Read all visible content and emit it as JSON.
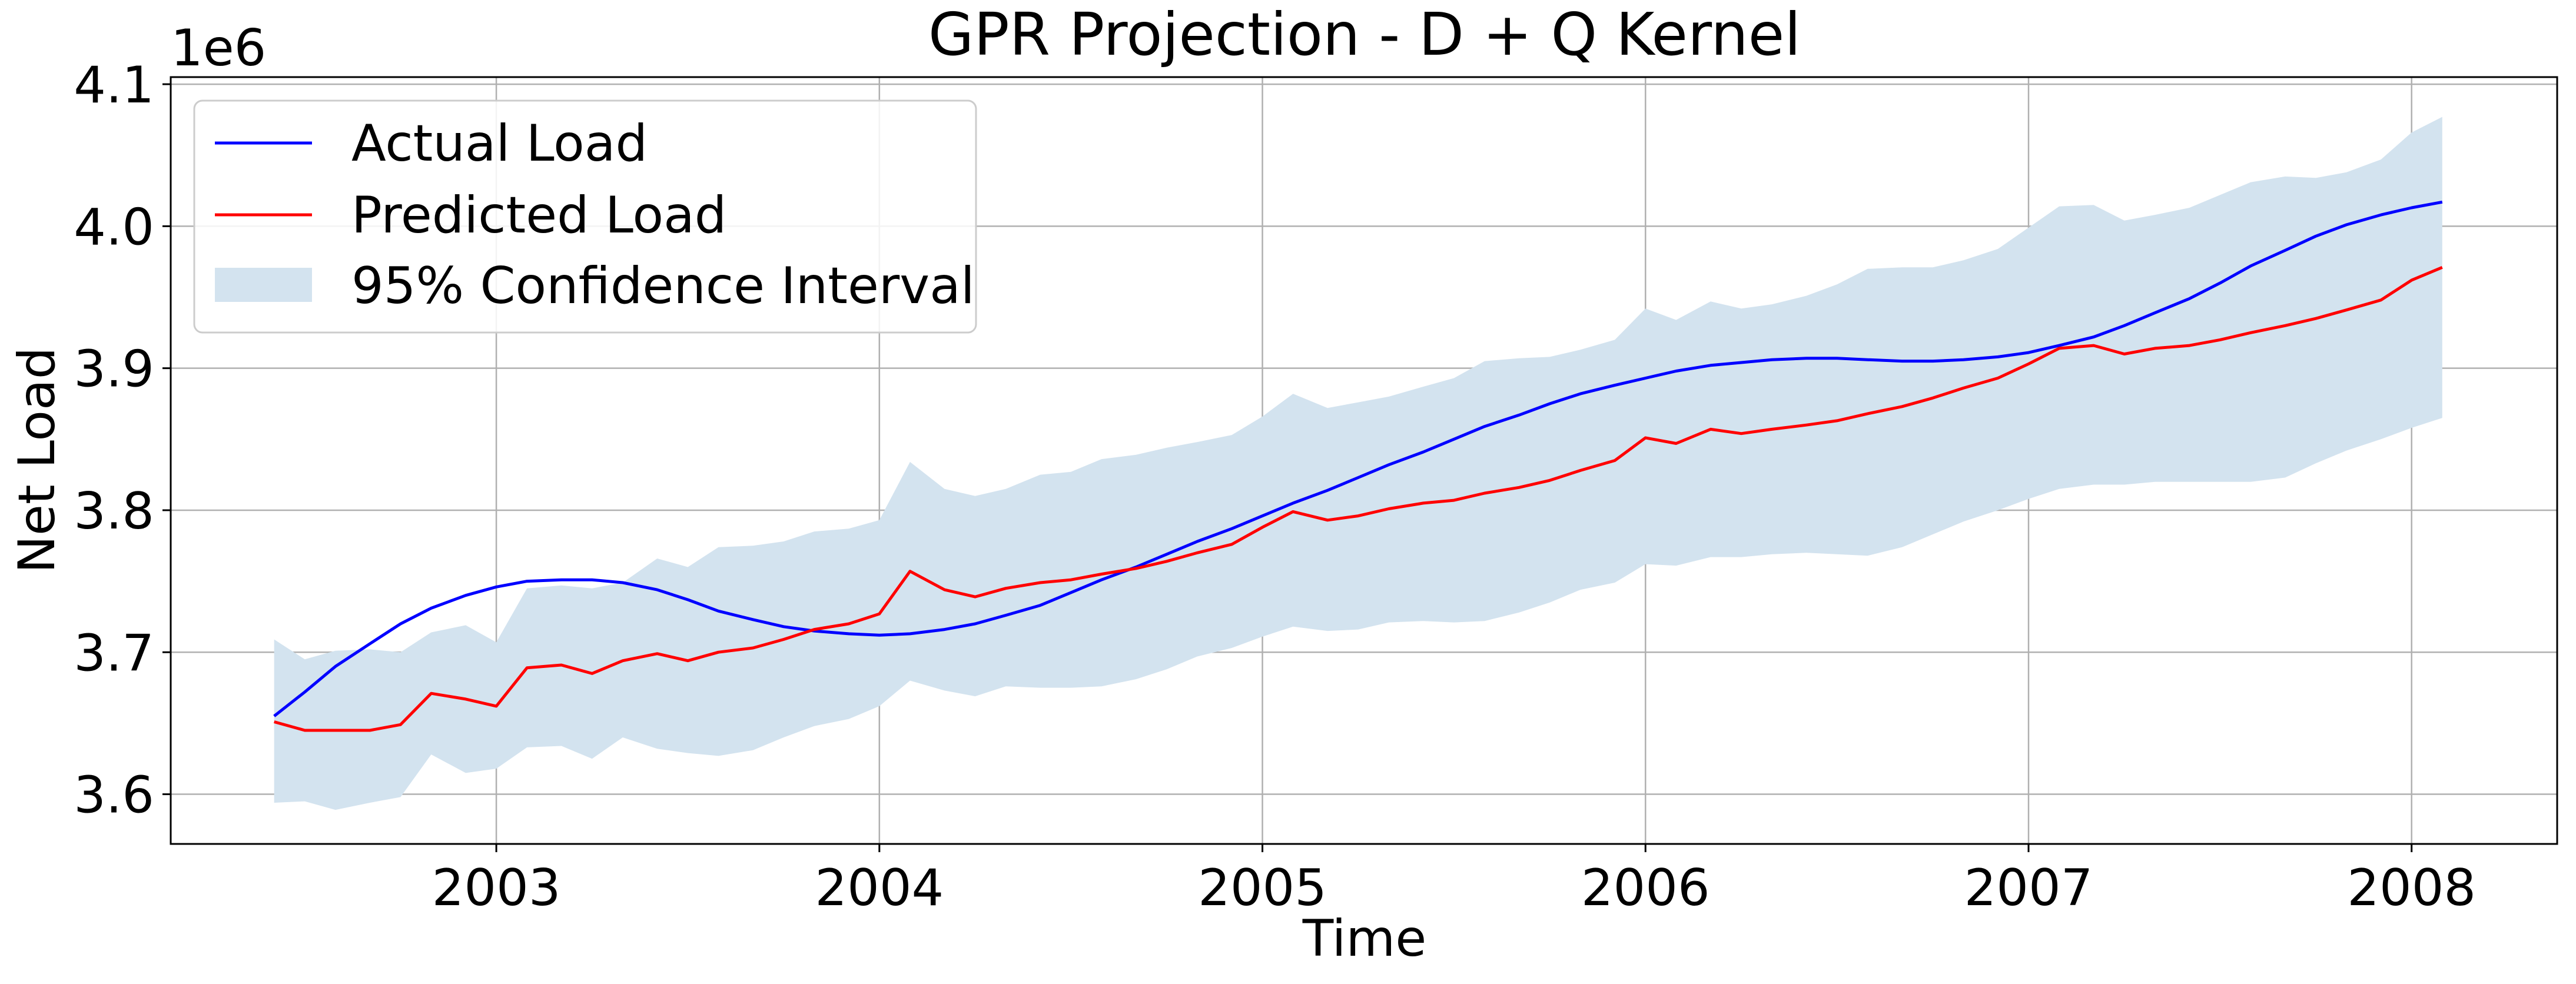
{
  "chart_data": {
    "type": "line",
    "title": "GPR Projection - D + Q Kernel",
    "xlabel": "Time",
    "ylabel": "Net Load",
    "y_offset_label": "1e6",
    "xlim": [
      2002.15,
      2008.38
    ],
    "ylim": [
      3.565,
      4.105
    ],
    "x_ticks": [
      2003,
      2004,
      2005,
      2006,
      2007,
      2008
    ],
    "x_tick_labels": [
      "2003",
      "2004",
      "2005",
      "2006",
      "2007",
      "2008"
    ],
    "y_ticks": [
      3.6,
      3.7,
      3.8,
      3.9,
      4.0,
      4.1
    ],
    "y_tick_labels": [
      "3.6",
      "3.7",
      "3.8",
      "3.9",
      "4.0",
      "4.1"
    ],
    "grid": true,
    "legend_position": "top-left",
    "colors": {
      "actual": "#0000ff",
      "predicted": "#ff0000",
      "ci": "#d3e3ef"
    },
    "x": [
      2002.42,
      2002.5,
      2002.58,
      2002.67,
      2002.75,
      2002.83,
      2002.92,
      2003.0,
      2003.08,
      2003.17,
      2003.25,
      2003.33,
      2003.42,
      2003.5,
      2003.58,
      2003.67,
      2003.75,
      2003.83,
      2003.92,
      2004.0,
      2004.08,
      2004.17,
      2004.25,
      2004.33,
      2004.42,
      2004.5,
      2004.58,
      2004.67,
      2004.75,
      2004.83,
      2004.92,
      2005.0,
      2005.08,
      2005.17,
      2005.25,
      2005.33,
      2005.42,
      2005.5,
      2005.58,
      2005.67,
      2005.75,
      2005.83,
      2005.92,
      2006.0,
      2006.08,
      2006.17,
      2006.25,
      2006.33,
      2006.42,
      2006.5,
      2006.58,
      2006.67,
      2006.75,
      2006.83,
      2006.92,
      2007.0,
      2007.08,
      2007.17,
      2007.25,
      2007.33,
      2007.42,
      2007.5,
      2007.58,
      2007.67,
      2007.75,
      2007.83,
      2007.92,
      2008.0,
      2008.08
    ],
    "series": [
      {
        "name": "Actual Load",
        "values": [
          3.655,
          3.672,
          3.69,
          3.706,
          3.72,
          3.731,
          3.74,
          3.746,
          3.75,
          3.751,
          3.751,
          3.749,
          3.744,
          3.737,
          3.729,
          3.723,
          3.718,
          3.715,
          3.713,
          3.712,
          3.713,
          3.716,
          3.72,
          3.726,
          3.733,
          3.742,
          3.751,
          3.76,
          3.769,
          3.778,
          3.787,
          3.796,
          3.805,
          3.814,
          3.823,
          3.832,
          3.841,
          3.85,
          3.859,
          3.867,
          3.875,
          3.882,
          3.888,
          3.893,
          3.898,
          3.902,
          3.904,
          3.906,
          3.907,
          3.907,
          3.906,
          3.905,
          3.905,
          3.906,
          3.908,
          3.911,
          3.916,
          3.922,
          3.93,
          3.939,
          3.949,
          3.96,
          3.972,
          3.983,
          3.993,
          4.001,
          4.008,
          4.013,
          4.017
        ]
      },
      {
        "name": "Predicted Load",
        "values": [
          3.651,
          3.645,
          3.645,
          3.645,
          3.649,
          3.671,
          3.667,
          3.662,
          3.689,
          3.691,
          3.685,
          3.694,
          3.699,
          3.694,
          3.7,
          3.703,
          3.709,
          3.716,
          3.72,
          3.727,
          3.757,
          3.744,
          3.739,
          3.745,
          3.749,
          3.751,
          3.755,
          3.759,
          3.764,
          3.77,
          3.776,
          3.788,
          3.799,
          3.793,
          3.796,
          3.801,
          3.805,
          3.807,
          3.812,
          3.816,
          3.821,
          3.828,
          3.835,
          3.851,
          3.847,
          3.857,
          3.854,
          3.857,
          3.86,
          3.863,
          3.868,
          3.873,
          3.879,
          3.886,
          3.893,
          3.903,
          3.914,
          3.916,
          3.91,
          3.914,
          3.916,
          3.92,
          3.925,
          3.93,
          3.935,
          3.941,
          3.948,
          3.962,
          3.971
        ]
      }
    ],
    "confidence_interval": {
      "name": "95% Confidence Interval",
      "lower": [
        3.594,
        3.595,
        3.589,
        3.594,
        3.598,
        3.628,
        3.615,
        3.618,
        3.633,
        3.634,
        3.625,
        3.64,
        3.632,
        3.629,
        3.627,
        3.631,
        3.64,
        3.648,
        3.653,
        3.662,
        3.68,
        3.673,
        3.669,
        3.676,
        3.675,
        3.675,
        3.676,
        3.681,
        3.688,
        3.697,
        3.703,
        3.711,
        3.718,
        3.715,
        3.716,
        3.721,
        3.722,
        3.721,
        3.722,
        3.728,
        3.735,
        3.744,
        3.749,
        3.762,
        3.761,
        3.767,
        3.767,
        3.769,
        3.77,
        3.769,
        3.768,
        3.774,
        3.783,
        3.792,
        3.8,
        3.808,
        3.815,
        3.818,
        3.818,
        3.82,
        3.82,
        3.82,
        3.82,
        3.823,
        3.833,
        3.842,
        3.85,
        3.858,
        3.865
      ],
      "upper": [
        3.709,
        3.695,
        3.701,
        3.702,
        3.7,
        3.714,
        3.719,
        3.707,
        3.745,
        3.747,
        3.745,
        3.749,
        3.766,
        3.76,
        3.774,
        3.775,
        3.778,
        3.785,
        3.787,
        3.793,
        3.834,
        3.815,
        3.81,
        3.815,
        3.825,
        3.827,
        3.836,
        3.839,
        3.844,
        3.848,
        3.853,
        3.866,
        3.882,
        3.872,
        3.876,
        3.88,
        3.887,
        3.893,
        3.905,
        3.907,
        3.908,
        3.913,
        3.92,
        3.942,
        3.934,
        3.947,
        3.942,
        3.945,
        3.951,
        3.959,
        3.97,
        3.971,
        3.971,
        3.976,
        3.984,
        3.999,
        4.014,
        4.015,
        4.004,
        4.008,
        4.013,
        4.022,
        4.031,
        4.035,
        4.034,
        4.038,
        4.047,
        4.066,
        4.077
      ]
    }
  }
}
